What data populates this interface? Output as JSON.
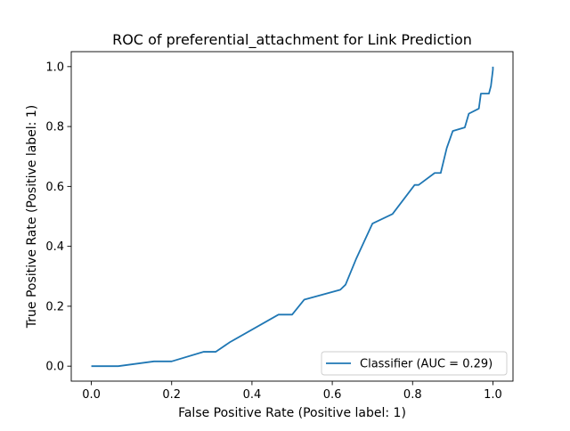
{
  "chart_data": {
    "type": "line",
    "title": "ROC of preferential_attachment for Link Prediction",
    "xlabel": "False Positive Rate (Positive label: 1)",
    "ylabel": "True Positive Rate (Positive label: 1)",
    "xlim": [
      -0.05,
      1.05
    ],
    "ylim": [
      -0.05,
      1.05
    ],
    "xticks": [
      0.0,
      0.2,
      0.4,
      0.6,
      0.8,
      1.0
    ],
    "xtick_labels": [
      "0.0",
      "0.2",
      "0.4",
      "0.6",
      "0.8",
      "1.0"
    ],
    "yticks": [
      0.0,
      0.2,
      0.4,
      0.6,
      0.8,
      1.0
    ],
    "ytick_labels": [
      "0.0",
      "0.2",
      "0.4",
      "0.6",
      "0.8",
      "1.0"
    ],
    "grid": false,
    "legend_position": "lower-right",
    "series": [
      {
        "name": "Classifier (AUC = 0.29)",
        "color": "#1f77b4",
        "x": [
          0.0,
          0.067,
          0.156,
          0.2,
          0.28,
          0.31,
          0.345,
          0.466,
          0.5,
          0.53,
          0.62,
          0.633,
          0.66,
          0.7,
          0.75,
          0.805,
          0.815,
          0.855,
          0.87,
          0.885,
          0.9,
          0.93,
          0.94,
          0.965,
          0.97,
          0.99,
          0.995,
          1.0,
          1.0
        ],
        "y": [
          0.0,
          0.0,
          0.016,
          0.016,
          0.048,
          0.048,
          0.08,
          0.172,
          0.172,
          0.222,
          0.255,
          0.272,
          0.36,
          0.476,
          0.508,
          0.605,
          0.605,
          0.645,
          0.645,
          0.728,
          0.785,
          0.797,
          0.843,
          0.86,
          0.91,
          0.91,
          0.935,
          0.99,
          1.0
        ]
      }
    ]
  }
}
